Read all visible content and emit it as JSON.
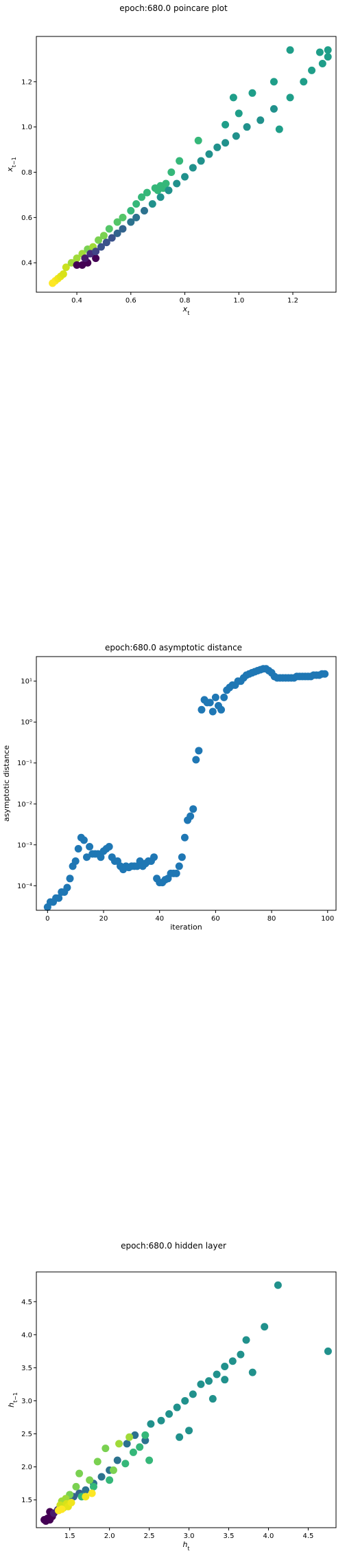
{
  "chart_data": [
    {
      "type": "scatter",
      "title": "epoch:680.0 poincare plot",
      "xlabel": "x_t",
      "ylabel": "x_{t-1}",
      "xlim": [
        0.25,
        1.36
      ],
      "ylim": [
        0.27,
        1.4
      ],
      "xticks": [
        0.4,
        0.6,
        0.8,
        1.0,
        1.2
      ],
      "yticks": [
        0.4,
        0.6,
        0.8,
        1.0,
        1.2
      ],
      "grid": false,
      "colormap": "viridis",
      "points": [
        {
          "x": 0.31,
          "y": 0.31,
          "c": "#fde725"
        },
        {
          "x": 0.32,
          "y": 0.32,
          "c": "#fde725"
        },
        {
          "x": 0.33,
          "y": 0.33,
          "c": "#f1e51d"
        },
        {
          "x": 0.34,
          "y": 0.34,
          "c": "#e5e419"
        },
        {
          "x": 0.35,
          "y": 0.35,
          "c": "#d8e219"
        },
        {
          "x": 0.36,
          "y": 0.38,
          "c": "#cae11f"
        },
        {
          "x": 0.38,
          "y": 0.4,
          "c": "#a0da39"
        },
        {
          "x": 0.4,
          "y": 0.42,
          "c": "#a0da39"
        },
        {
          "x": 0.42,
          "y": 0.44,
          "c": "#a0da39"
        },
        {
          "x": 0.44,
          "y": 0.46,
          "c": "#7ad151"
        },
        {
          "x": 0.46,
          "y": 0.47,
          "c": "#a0da39"
        },
        {
          "x": 0.48,
          "y": 0.5,
          "c": "#7ad151"
        },
        {
          "x": 0.5,
          "y": 0.52,
          "c": "#7ad151"
        },
        {
          "x": 0.52,
          "y": 0.55,
          "c": "#54c568"
        },
        {
          "x": 0.55,
          "y": 0.58,
          "c": "#54c568"
        },
        {
          "x": 0.57,
          "y": 0.6,
          "c": "#54c568"
        },
        {
          "x": 0.6,
          "y": 0.63,
          "c": "#35b779"
        },
        {
          "x": 0.62,
          "y": 0.66,
          "c": "#35b779"
        },
        {
          "x": 0.64,
          "y": 0.69,
          "c": "#35b779"
        },
        {
          "x": 0.66,
          "y": 0.71,
          "c": "#35b779"
        },
        {
          "x": 0.69,
          "y": 0.73,
          "c": "#35b779"
        },
        {
          "x": 0.7,
          "y": 0.72,
          "c": "#35b779"
        },
        {
          "x": 0.71,
          "y": 0.74,
          "c": "#35b779"
        },
        {
          "x": 0.72,
          "y": 0.73,
          "c": "#35b779"
        },
        {
          "x": 0.73,
          "y": 0.75,
          "c": "#35b779"
        },
        {
          "x": 0.74,
          "y": 0.72,
          "c": "#35b779"
        },
        {
          "x": 0.75,
          "y": 0.8,
          "c": "#35b779"
        },
        {
          "x": 0.78,
          "y": 0.85,
          "c": "#35b779"
        },
        {
          "x": 0.85,
          "y": 0.94,
          "c": "#35b779"
        },
        {
          "x": 0.95,
          "y": 1.01,
          "c": "#1f9e89"
        },
        {
          "x": 0.98,
          "y": 1.13,
          "c": "#1f9e89"
        },
        {
          "x": 1.0,
          "y": 1.06,
          "c": "#1f9e89"
        },
        {
          "x": 1.05,
          "y": 1.15,
          "c": "#1f9e89"
        },
        {
          "x": 1.13,
          "y": 1.2,
          "c": "#1f9e89"
        },
        {
          "x": 1.15,
          "y": 0.99,
          "c": "#1f9e89"
        },
        {
          "x": 1.19,
          "y": 1.13,
          "c": "#1f9e89"
        },
        {
          "x": 1.19,
          "y": 1.34,
          "c": "#1f9e89"
        },
        {
          "x": 1.24,
          "y": 1.2,
          "c": "#1f9e89"
        },
        {
          "x": 1.27,
          "y": 1.25,
          "c": "#1f9e89"
        },
        {
          "x": 1.3,
          "y": 1.33,
          "c": "#1f9e89"
        },
        {
          "x": 1.31,
          "y": 1.28,
          "c": "#1f9e89"
        },
        {
          "x": 1.33,
          "y": 1.31,
          "c": "#1f9e89"
        },
        {
          "x": 1.33,
          "y": 1.34,
          "c": "#1f9e89"
        },
        {
          "x": 0.4,
          "y": 0.39,
          "c": "#440154"
        },
        {
          "x": 0.42,
          "y": 0.39,
          "c": "#440154"
        },
        {
          "x": 0.44,
          "y": 0.4,
          "c": "#440154"
        },
        {
          "x": 0.47,
          "y": 0.42,
          "c": "#440154"
        },
        {
          "x": 0.43,
          "y": 0.42,
          "c": "#481a6c"
        },
        {
          "x": 0.45,
          "y": 0.44,
          "c": "#472f7d"
        },
        {
          "x": 0.47,
          "y": 0.45,
          "c": "#414487"
        },
        {
          "x": 0.49,
          "y": 0.47,
          "c": "#3b528b"
        },
        {
          "x": 0.51,
          "y": 0.49,
          "c": "#3b528b"
        },
        {
          "x": 0.53,
          "y": 0.51,
          "c": "#3b528b"
        },
        {
          "x": 0.55,
          "y": 0.53,
          "c": "#33638d"
        },
        {
          "x": 0.57,
          "y": 0.55,
          "c": "#33638d"
        },
        {
          "x": 0.6,
          "y": 0.58,
          "c": "#2c728e"
        },
        {
          "x": 0.62,
          "y": 0.6,
          "c": "#2c728e"
        },
        {
          "x": 0.65,
          "y": 0.63,
          "c": "#2c728e"
        },
        {
          "x": 0.68,
          "y": 0.66,
          "c": "#21918c"
        },
        {
          "x": 0.71,
          "y": 0.69,
          "c": "#21918c"
        },
        {
          "x": 0.74,
          "y": 0.72,
          "c": "#21918c"
        },
        {
          "x": 0.77,
          "y": 0.75,
          "c": "#21918c"
        },
        {
          "x": 0.8,
          "y": 0.78,
          "c": "#21918c"
        },
        {
          "x": 0.83,
          "y": 0.82,
          "c": "#21918c"
        },
        {
          "x": 0.86,
          "y": 0.85,
          "c": "#21918c"
        },
        {
          "x": 0.89,
          "y": 0.88,
          "c": "#21918c"
        },
        {
          "x": 0.92,
          "y": 0.91,
          "c": "#21918c"
        },
        {
          "x": 0.95,
          "y": 0.93,
          "c": "#21918c"
        },
        {
          "x": 0.99,
          "y": 0.96,
          "c": "#21918c"
        },
        {
          "x": 1.03,
          "y": 1.0,
          "c": "#21918c"
        },
        {
          "x": 1.08,
          "y": 1.03,
          "c": "#21918c"
        },
        {
          "x": 1.13,
          "y": 1.08,
          "c": "#21918c"
        }
      ]
    },
    {
      "type": "scatter",
      "title": "epoch:680.0 asymptotic distance",
      "xlabel": "iteration",
      "ylabel": "asymptotic distance",
      "yscale": "log",
      "xlim": [
        -4,
        103
      ],
      "ylim_exp": [
        -4.6,
        1.6
      ],
      "xticks": [
        0,
        20,
        40,
        60,
        80,
        100
      ],
      "ytick_labels": [
        "10⁻⁴",
        "10⁻³",
        "10⁻²",
        "10⁻¹",
        "10⁰",
        "10¹"
      ],
      "grid": false,
      "color": "#1f77b4",
      "x": [
        0,
        1,
        2,
        3,
        4,
        5,
        6,
        7,
        8,
        9,
        10,
        11,
        12,
        13,
        14,
        15,
        16,
        17,
        18,
        19,
        20,
        21,
        22,
        23,
        24,
        25,
        26,
        27,
        28,
        29,
        30,
        31,
        32,
        33,
        34,
        35,
        36,
        37,
        38,
        39,
        40,
        41,
        42,
        43,
        44,
        45,
        46,
        47,
        48,
        49,
        50,
        51,
        52,
        53,
        54,
        55,
        56,
        57,
        58,
        59,
        60,
        61,
        62,
        63,
        64,
        65,
        66,
        67,
        68,
        69,
        70,
        71,
        72,
        73,
        74,
        75,
        76,
        77,
        78,
        79,
        80,
        81,
        82,
        83,
        84,
        85,
        86,
        87,
        88,
        89,
        90,
        91,
        92,
        93,
        94,
        95,
        96,
        97,
        98,
        99
      ],
      "y": [
        3e-05,
        4e-05,
        4e-05,
        5e-05,
        5e-05,
        7e-05,
        7e-05,
        9e-05,
        0.00015,
        0.0003,
        0.0004,
        0.0008,
        0.0015,
        0.0013,
        0.0005,
        0.0009,
        0.0006,
        0.0006,
        0.0006,
        0.0005,
        0.0007,
        0.0008,
        0.0009,
        0.0005,
        0.0004,
        0.0004,
        0.0003,
        0.00025,
        0.0003,
        0.00028,
        0.0003,
        0.0003,
        0.0003,
        0.0004,
        0.0003,
        0.00035,
        0.0004,
        0.0004,
        0.0005,
        0.00015,
        0.00012,
        0.00012,
        0.00014,
        0.00015,
        0.0002,
        0.0002,
        0.0002,
        0.0003,
        0.0005,
        0.0015,
        0.004,
        0.005,
        0.0075,
        0.12,
        0.2,
        2.0,
        3.5,
        3.0,
        3.0,
        1.8,
        4.0,
        2.5,
        2.0,
        4.0,
        6.0,
        7.0,
        8.0,
        8.0,
        10,
        10,
        12,
        14,
        15,
        16,
        17,
        18,
        19,
        20,
        20,
        18,
        16,
        13,
        12,
        12,
        12,
        12,
        12,
        12,
        12,
        13,
        13,
        13,
        13,
        13,
        13,
        14,
        14,
        14,
        15,
        15
      ]
    },
    {
      "type": "scatter",
      "title": "epoch:680.0 hidden layer",
      "xlabel": "h_t",
      "ylabel": "h_{t-1}",
      "xlim": [
        1.08,
        4.85
      ],
      "ylim": [
        1.08,
        4.95
      ],
      "xticks": [
        1.5,
        2.0,
        2.5,
        3.0,
        3.5,
        4.0,
        4.5
      ],
      "yticks": [
        1.5,
        2.0,
        2.5,
        3.0,
        3.5,
        4.0,
        4.5
      ],
      "grid": false,
      "colormap": "viridis",
      "points": [
        {
          "x": 1.18,
          "y": 1.2,
          "c": "#440154"
        },
        {
          "x": 1.2,
          "y": 1.18,
          "c": "#440154"
        },
        {
          "x": 1.22,
          "y": 1.22,
          "c": "#440154"
        },
        {
          "x": 1.25,
          "y": 1.2,
          "c": "#440154"
        },
        {
          "x": 1.28,
          "y": 1.25,
          "c": "#440154"
        },
        {
          "x": 1.25,
          "y": 1.32,
          "c": "#440154"
        },
        {
          "x": 1.3,
          "y": 1.3,
          "c": "#481a6c"
        },
        {
          "x": 1.35,
          "y": 1.35,
          "c": "#472f7d"
        },
        {
          "x": 1.4,
          "y": 1.4,
          "c": "#414487"
        },
        {
          "x": 1.45,
          "y": 1.45,
          "c": "#3b528b"
        },
        {
          "x": 1.5,
          "y": 1.5,
          "c": "#3b528b"
        },
        {
          "x": 1.55,
          "y": 1.55,
          "c": "#33638d"
        },
        {
          "x": 1.62,
          "y": 1.6,
          "c": "#33638d"
        },
        {
          "x": 1.7,
          "y": 1.65,
          "c": "#2c728e"
        },
        {
          "x": 1.8,
          "y": 1.75,
          "c": "#2c728e"
        },
        {
          "x": 1.9,
          "y": 1.85,
          "c": "#2c728e"
        },
        {
          "x": 2.0,
          "y": 1.95,
          "c": "#2c728e"
        },
        {
          "x": 2.1,
          "y": 2.1,
          "c": "#2c728e"
        },
        {
          "x": 2.22,
          "y": 2.35,
          "c": "#2c728e"
        },
        {
          "x": 2.32,
          "y": 2.48,
          "c": "#2c728e"
        },
        {
          "x": 2.45,
          "y": 2.4,
          "c": "#2c728e"
        },
        {
          "x": 2.52,
          "y": 2.65,
          "c": "#21918c"
        },
        {
          "x": 2.65,
          "y": 2.7,
          "c": "#21918c"
        },
        {
          "x": 2.75,
          "y": 2.8,
          "c": "#21918c"
        },
        {
          "x": 2.85,
          "y": 2.9,
          "c": "#21918c"
        },
        {
          "x": 2.95,
          "y": 3.0,
          "c": "#21918c"
        },
        {
          "x": 3.05,
          "y": 3.1,
          "c": "#21918c"
        },
        {
          "x": 3.15,
          "y": 3.25,
          "c": "#21918c"
        },
        {
          "x": 3.25,
          "y": 3.3,
          "c": "#21918c"
        },
        {
          "x": 3.35,
          "y": 3.4,
          "c": "#21918c"
        },
        {
          "x": 3.45,
          "y": 3.52,
          "c": "#21918c"
        },
        {
          "x": 3.55,
          "y": 3.6,
          "c": "#21918c"
        },
        {
          "x": 3.65,
          "y": 3.7,
          "c": "#21918c"
        },
        {
          "x": 3.72,
          "y": 3.92,
          "c": "#21918c"
        },
        {
          "x": 3.8,
          "y": 3.43,
          "c": "#21918c"
        },
        {
          "x": 3.95,
          "y": 4.12,
          "c": "#21918c"
        },
        {
          "x": 4.12,
          "y": 4.75,
          "c": "#21918c"
        },
        {
          "x": 4.75,
          "y": 3.75,
          "c": "#21918c"
        },
        {
          "x": 3.45,
          "y": 3.32,
          "c": "#21918c"
        },
        {
          "x": 3.3,
          "y": 3.03,
          "c": "#21918c"
        },
        {
          "x": 3.0,
          "y": 2.55,
          "c": "#21918c"
        },
        {
          "x": 2.88,
          "y": 2.45,
          "c": "#21918c"
        },
        {
          "x": 2.5,
          "y": 2.1,
          "c": "#35b779"
        },
        {
          "x": 2.45,
          "y": 2.48,
          "c": "#35b779"
        },
        {
          "x": 2.38,
          "y": 2.3,
          "c": "#35b779"
        },
        {
          "x": 2.3,
          "y": 2.22,
          "c": "#35b779"
        },
        {
          "x": 2.2,
          "y": 2.05,
          "c": "#35b779"
        },
        {
          "x": 2.0,
          "y": 1.8,
          "c": "#35b779"
        },
        {
          "x": 1.8,
          "y": 1.7,
          "c": "#35b779"
        },
        {
          "x": 1.65,
          "y": 1.55,
          "c": "#35b779"
        },
        {
          "x": 2.05,
          "y": 1.95,
          "c": "#7ad151"
        },
        {
          "x": 1.95,
          "y": 2.28,
          "c": "#7ad151"
        },
        {
          "x": 1.85,
          "y": 2.08,
          "c": "#7ad151"
        },
        {
          "x": 1.75,
          "y": 1.8,
          "c": "#7ad151"
        },
        {
          "x": 1.62,
          "y": 1.9,
          "c": "#7ad151"
        },
        {
          "x": 1.58,
          "y": 1.7,
          "c": "#7ad151"
        },
        {
          "x": 1.5,
          "y": 1.58,
          "c": "#7ad151"
        },
        {
          "x": 1.45,
          "y": 1.52,
          "c": "#a0da39"
        },
        {
          "x": 1.4,
          "y": 1.48,
          "c": "#a0da39"
        },
        {
          "x": 1.38,
          "y": 1.42,
          "c": "#cae11f"
        },
        {
          "x": 1.42,
          "y": 1.38,
          "c": "#cae11f"
        },
        {
          "x": 1.46,
          "y": 1.44,
          "c": "#d8e219"
        },
        {
          "x": 1.48,
          "y": 1.4,
          "c": "#e5e419"
        },
        {
          "x": 1.52,
          "y": 1.46,
          "c": "#f1e51d"
        },
        {
          "x": 1.7,
          "y": 1.55,
          "c": "#f1e51d"
        },
        {
          "x": 1.78,
          "y": 1.6,
          "c": "#fde725"
        },
        {
          "x": 1.4,
          "y": 1.36,
          "c": "#fde725"
        },
        {
          "x": 1.36,
          "y": 1.34,
          "c": "#fde725"
        },
        {
          "x": 2.12,
          "y": 2.35,
          "c": "#a0da39"
        },
        {
          "x": 2.25,
          "y": 2.45,
          "c": "#a0da39"
        }
      ]
    }
  ]
}
